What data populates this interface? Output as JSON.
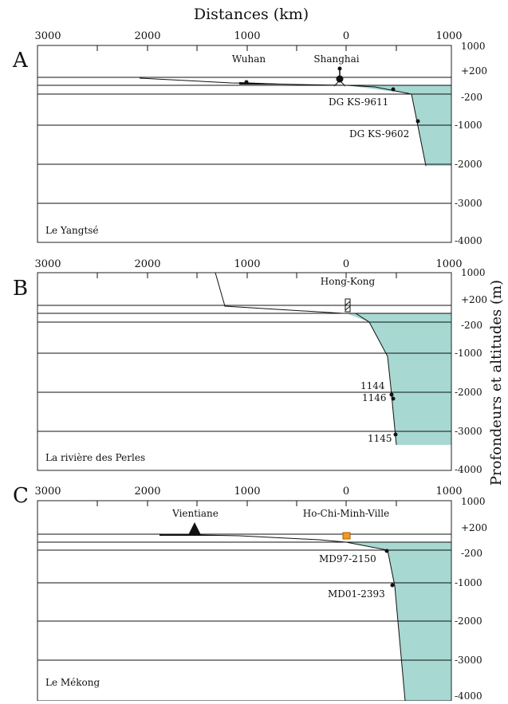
{
  "figure": {
    "title": "Distances (km)",
    "ylabel": "Profondeurs et altitudes (m)",
    "x_ticks": [
      "3000",
      "2000",
      "1000",
      "0",
      "1000"
    ],
    "y_ticks": [
      "1000",
      "+200",
      "-200",
      "-1000",
      "-2000",
      "-3000",
      "-4000"
    ],
    "colors": {
      "sea": "#a7d8d2",
      "line": "#111111",
      "marker_orange": "#f39a1e"
    }
  },
  "panels": [
    {
      "letter": "A",
      "name": "Le Yangtsé",
      "labels": [
        "Wuhan",
        "Shanghai",
        "DG KS-9611",
        "DG KS-9602"
      ]
    },
    {
      "letter": "B",
      "name": "La rivière des Perles",
      "labels": [
        "Hong-Kong",
        "1144",
        "1146",
        "1145"
      ]
    },
    {
      "letter": "C",
      "name": "Le Mékong",
      "labels": [
        "Vientiane",
        "Ho-Chi-Minh-Ville",
        "MD97-2150",
        "MD01-2393"
      ]
    }
  ]
}
